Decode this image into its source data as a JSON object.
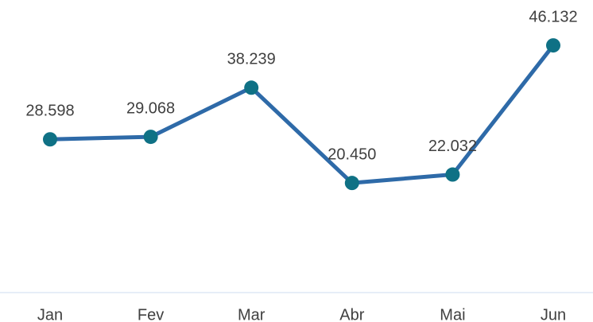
{
  "chart_data": {
    "type": "line",
    "categories": [
      "Jan",
      "Fev",
      "Mar",
      "Abr",
      "Mai",
      "Jun"
    ],
    "series": [
      {
        "color": "#2e6aa8",
        "marker_color": "#0f7185",
        "values": [
          28598,
          29068,
          38239,
          20450,
          22032,
          46132
        ],
        "value_labels": [
          "28.598",
          "29.068",
          "38.239",
          "20.450",
          "22.032",
          "46.132"
        ]
      }
    ],
    "ylim": [
      0,
      50000
    ]
  }
}
